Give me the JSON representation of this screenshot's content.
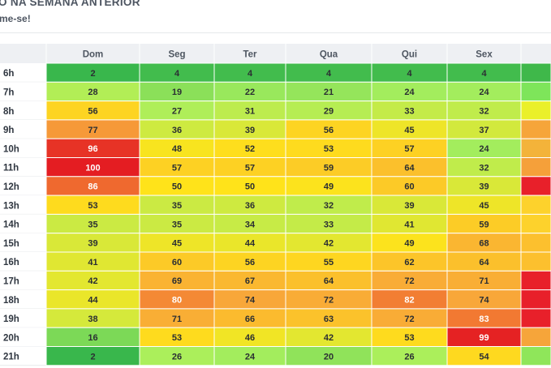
{
  "header": {
    "title": "O NA SEMANA ANTERIOR",
    "subtitle": "me-se!"
  },
  "chart_data": {
    "type": "heatmap",
    "columns": [
      "Dom",
      "Seg",
      "Ter",
      "Qua",
      "Qui",
      "Sex",
      ""
    ],
    "rows": [
      "6h",
      "7h",
      "8h",
      "9h",
      "10h",
      "11h",
      "12h",
      "13h",
      "14h",
      "15h",
      "16h",
      "17h",
      "18h",
      "19h",
      "20h",
      "21h"
    ],
    "values": [
      [
        2,
        4,
        4,
        4,
        4,
        4,
        null
      ],
      [
        28,
        19,
        22,
        21,
        24,
        24,
        null
      ],
      [
        56,
        27,
        31,
        29,
        33,
        32,
        null
      ],
      [
        77,
        36,
        39,
        56,
        45,
        37,
        null
      ],
      [
        96,
        48,
        52,
        53,
        57,
        24,
        null
      ],
      [
        100,
        57,
        57,
        59,
        64,
        32,
        null
      ],
      [
        86,
        50,
        50,
        49,
        60,
        39,
        null
      ],
      [
        53,
        35,
        36,
        32,
        39,
        45,
        null
      ],
      [
        35,
        35,
        34,
        33,
        41,
        59,
        null
      ],
      [
        39,
        45,
        44,
        42,
        49,
        68,
        null
      ],
      [
        41,
        60,
        56,
        55,
        62,
        64,
        null
      ],
      [
        42,
        69,
        67,
        64,
        72,
        71,
        null
      ],
      [
        44,
        80,
        74,
        72,
        82,
        74,
        null
      ],
      [
        38,
        71,
        66,
        63,
        72,
        83,
        null
      ],
      [
        16,
        53,
        46,
        42,
        53,
        99,
        null
      ],
      [
        2,
        26,
        24,
        20,
        26,
        54,
        null
      ]
    ],
    "partial_column_colors": [
      "#3fb84a",
      "#7ee55a",
      "#eaf02a",
      "#f6a53a",
      "#f3b33a",
      "#f5a03a",
      "#e8202a",
      "#fdd22c",
      "#fdd22c",
      "#fcc02e",
      "#fcc02e",
      "#e8202a",
      "#e8202a",
      "#e8202a",
      "#f6a53a",
      "#8fe65a"
    ],
    "colors": {
      "low": "#2fb24a",
      "mid_low": "#a8ef5e",
      "mid": "#ffe31a",
      "mid_high": "#f8a43a",
      "high": "#e41d22",
      "header_bg": "#eef0f3",
      "header_text": "#4e5661",
      "row_label_text": "#2f3640"
    }
  }
}
